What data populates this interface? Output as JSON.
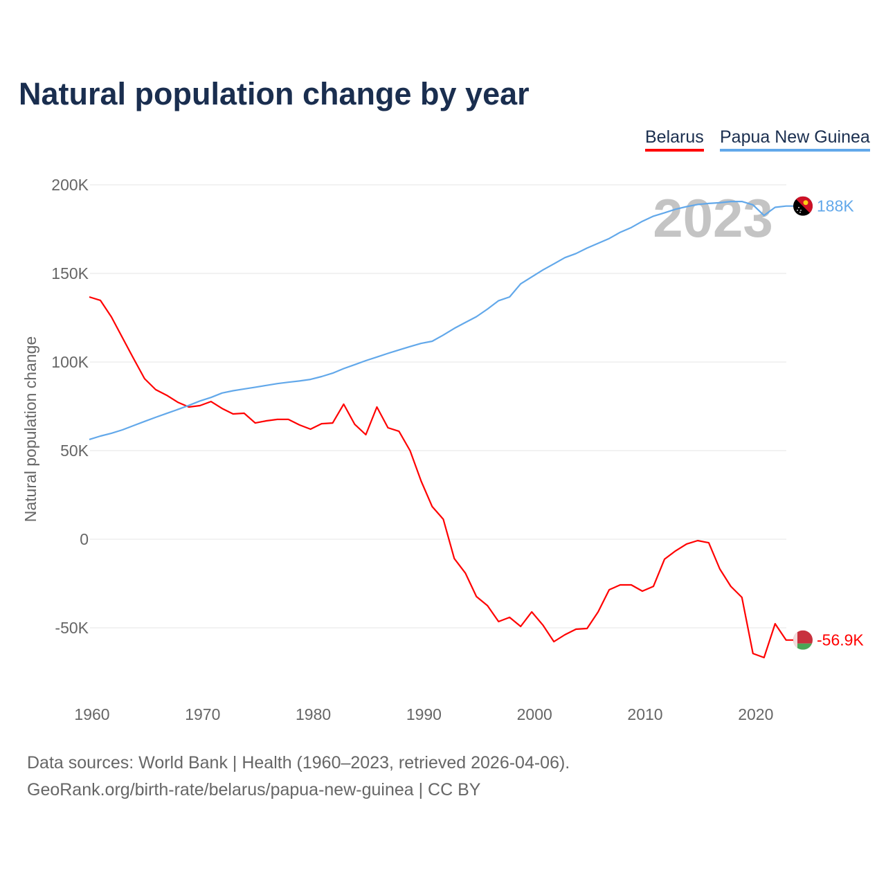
{
  "title": "Natural population change by year",
  "colors": {
    "belarus": "#ff0000",
    "png": "#62a8ea",
    "title": "#1a2e4f",
    "year_watermark": "#c4c4c4"
  },
  "chart_data": {
    "type": "line",
    "title": "Natural population change by year",
    "xlabel": "",
    "ylabel": "Natural population change",
    "xlim": [
      1960,
      2023
    ],
    "ylim": [
      -70000,
      200000
    ],
    "grid": true,
    "legend_placement": "top-right",
    "year_label": "2023",
    "x_ticks": [
      1960,
      1970,
      1980,
      1990,
      2000,
      2010,
      2020
    ],
    "x_tick_labels": [
      "1960",
      "1970",
      "1980",
      "1990",
      "2000",
      "2010",
      "2020"
    ],
    "y_ticks": [
      200000,
      150000,
      100000,
      50000,
      0,
      -50000
    ],
    "y_tick_labels": [
      "200K",
      "150K",
      "100K",
      "50K",
      "0",
      "-50K"
    ],
    "x": [
      1960,
      1961,
      1962,
      1963,
      1964,
      1965,
      1966,
      1967,
      1968,
      1969,
      1970,
      1971,
      1972,
      1973,
      1974,
      1975,
      1976,
      1977,
      1978,
      1979,
      1980,
      1981,
      1982,
      1983,
      1984,
      1985,
      1986,
      1987,
      1988,
      1989,
      1990,
      1991,
      1992,
      1993,
      1994,
      1995,
      1996,
      1997,
      1998,
      1999,
      2000,
      2001,
      2002,
      2003,
      2004,
      2005,
      2006,
      2007,
      2008,
      2009,
      2010,
      2011,
      2012,
      2013,
      2014,
      2015,
      2016,
      2017,
      2018,
      2019,
      2020,
      2021,
      2022,
      2023
    ],
    "series": [
      {
        "name": "Belarus",
        "color": "#ff0000",
        "end_label": "-56.9K",
        "flag": "belarus-flag",
        "values": [
          136700,
          134800,
          125400,
          113700,
          102000,
          90600,
          84400,
          81200,
          77300,
          74600,
          75400,
          77700,
          73800,
          70700,
          71100,
          65600,
          66800,
          67600,
          67600,
          64500,
          62100,
          65200,
          65600,
          76200,
          64800,
          59000,
          74600,
          62900,
          60900,
          50000,
          32800,
          18400,
          11300,
          -10900,
          -19100,
          -32400,
          -37500,
          -46500,
          -44100,
          -49200,
          -41000,
          -48400,
          -57800,
          -53900,
          -50800,
          -50400,
          -41000,
          -28500,
          -25800,
          -25800,
          -29300,
          -26600,
          -11300,
          -6600,
          -2700,
          -800,
          -2000,
          -16800,
          -26600,
          -32800,
          -64500,
          -66800,
          -47700,
          -56900
        ]
      },
      {
        "name": "Papua New Guinea",
        "color": "#62a8ea",
        "end_label": "188K",
        "flag": "papua-new-guinea-flag",
        "values": [
          56300,
          58200,
          59800,
          61700,
          64100,
          66500,
          68800,
          71000,
          73200,
          75500,
          78000,
          80000,
          82500,
          83800,
          84800,
          85800,
          86800,
          87800,
          88600,
          89300,
          90200,
          91800,
          93700,
          96300,
          98500,
          100800,
          102800,
          104900,
          106800,
          108700,
          110500,
          111700,
          115200,
          119000,
          122300,
          125600,
          129900,
          134600,
          136700,
          144100,
          148000,
          151900,
          155400,
          158900,
          161200,
          164300,
          167000,
          169700,
          173200,
          175900,
          179400,
          182300,
          184200,
          186200,
          187700,
          188900,
          189500,
          189900,
          190600,
          190600,
          188700,
          182700,
          187300,
          188000
        ]
      }
    ]
  },
  "sources": {
    "line1": "Data sources: World Bank | Health (1960–2023, retrieved 2026-04-06).",
    "line2": "GeoRank.org/birth-rate/belarus/papua-new-guinea | CC BY"
  }
}
